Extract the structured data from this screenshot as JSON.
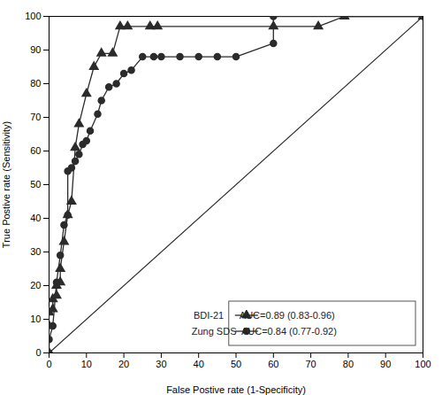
{
  "chart_data": {
    "type": "line",
    "xlabel": "False Postive rate (1-Specificity)",
    "ylabel": "True Postive rate (Sensitivity)",
    "series": [
      {
        "name": "BDI-21      AUC=0.89 (0.83-0.96)",
        "color": "#2b2b2b",
        "marker": "triangle",
        "x": [
          0,
          0,
          0,
          1,
          1,
          2,
          2,
          3,
          3,
          4,
          5,
          6,
          7,
          8,
          10,
          12,
          14,
          17,
          19,
          21,
          27,
          29,
          60,
          72,
          79,
          100
        ],
        "values": [
          0,
          8,
          12,
          13,
          16,
          17,
          20,
          21,
          25,
          33,
          41,
          45,
          61,
          68,
          77,
          85,
          89,
          89,
          97,
          97,
          97,
          97,
          97,
          97,
          100,
          100
        ]
      },
      {
        "name": "Zung SDS  AUC=0.84 (0.77-0.92)",
        "color": "#2b2b2b",
        "marker": "circle",
        "x": [
          0,
          0,
          1,
          2,
          3,
          4,
          5,
          5,
          6,
          7,
          8,
          9,
          10,
          11,
          13,
          14,
          16,
          18,
          20,
          22,
          25,
          28,
          30,
          35,
          40,
          45,
          50,
          60,
          60,
          100
        ],
        "values": [
          0,
          4,
          8,
          21,
          29,
          38,
          41,
          54,
          55,
          57,
          59,
          62,
          63,
          66,
          71,
          75,
          79,
          80,
          83,
          84,
          88,
          88,
          88,
          88,
          88,
          88,
          88,
          92,
          100,
          100
        ]
      }
    ],
    "diagonal": {
      "x": [
        0,
        100
      ],
      "values": [
        0,
        100
      ],
      "color": "#2b2b2b"
    },
    "xlim": [
      0,
      100
    ],
    "ylim": [
      0,
      100
    ],
    "xticks": [
      0,
      10,
      20,
      30,
      40,
      50,
      60,
      70,
      80,
      90,
      100
    ],
    "yticks": [
      0,
      10,
      20,
      30,
      40,
      50,
      60,
      70,
      80,
      90,
      100
    ],
    "grid": false,
    "legend": "lower right"
  }
}
